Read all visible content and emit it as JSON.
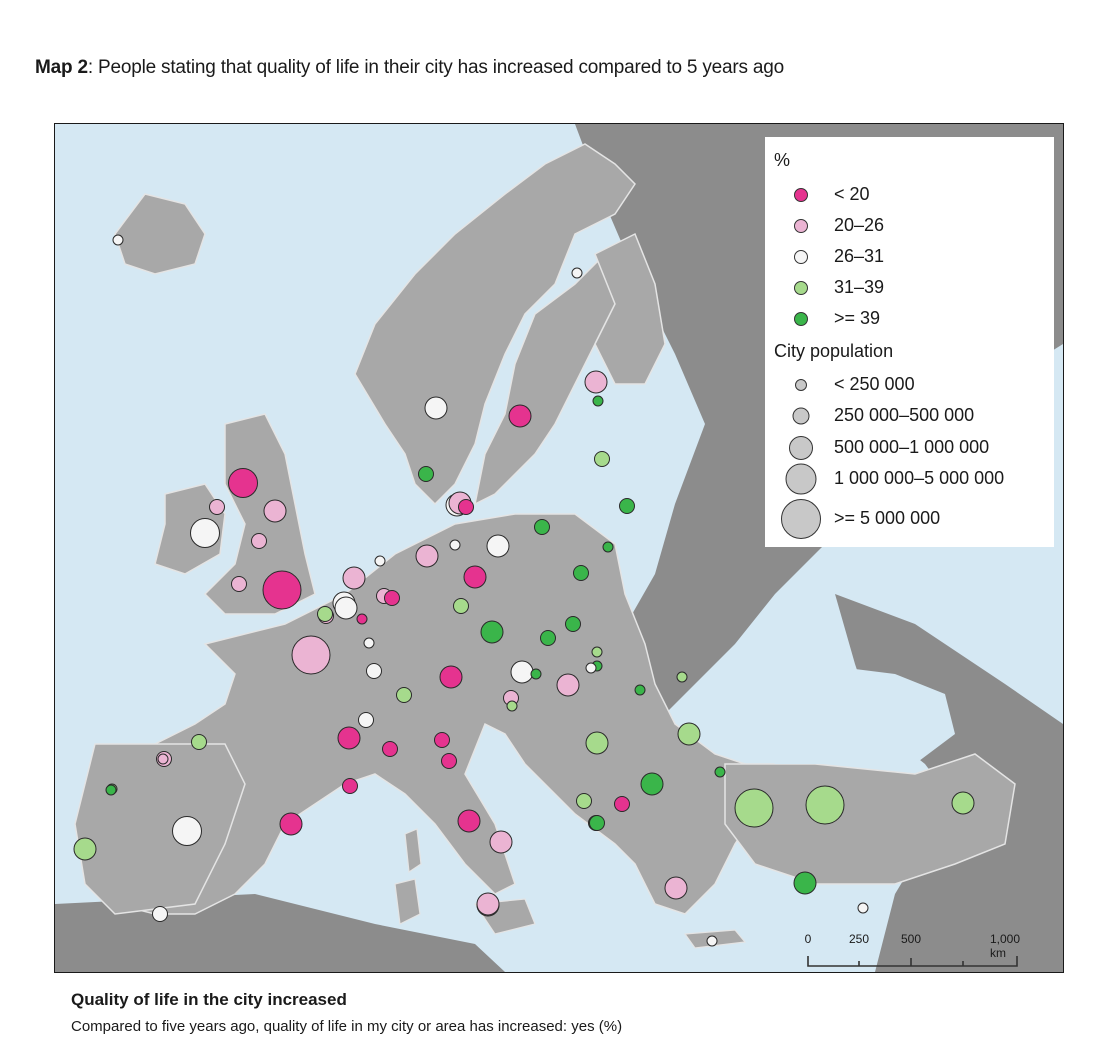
{
  "title": {
    "prefix": "Map 2",
    "text": ": People stating that quality of life in their city has increased compared to 5 years ago"
  },
  "colors": {
    "sea": "#d5e8f3",
    "land_focus": "#a8a8a8",
    "land_other": "#8c8c8c",
    "border": "#e4e4e4",
    "cat_lt20": "#e5338f",
    "cat_20_26": "#ebb4d3",
    "cat_26_31": "#f5f5f5",
    "cat_31_39": "#a6da8c",
    "cat_ge39": "#3ab54a"
  },
  "legend": {
    "pct_heading": "%",
    "categories": [
      {
        "label": "< 20",
        "color": "#e5338f"
      },
      {
        "label": "20–26",
        "color": "#ebb4d3"
      },
      {
        "label": "26–31",
        "color": "#f5f5f5"
      },
      {
        "label": "31–39",
        "color": "#a6da8c"
      },
      {
        "label": ">= 39",
        "color": "#3ab54a"
      }
    ],
    "pop_heading": "City population",
    "sizes": [
      {
        "label": "< 250 000"
      },
      {
        "label": "250 000–500 000"
      },
      {
        "label": "500 000–1 000 000"
      },
      {
        "label": "1 000 000–5 000 000"
      },
      {
        "label": ">= 5 000 000"
      }
    ]
  },
  "scale": {
    "ticks": [
      "0",
      "250",
      "500",
      "1,000 km"
    ]
  },
  "cities": [
    {
      "cat": 2,
      "size": 0
    },
    {
      "cat": 2,
      "size": 0
    },
    {
      "cat": 2,
      "size": 2
    },
    {
      "cat": 0,
      "size": 3
    },
    {
      "cat": 1,
      "size": 2
    },
    {
      "cat": 4,
      "size": 0
    },
    {
      "cat": 3,
      "size": 1
    },
    {
      "cat": 3,
      "size": 1
    },
    {
      "cat": 4,
      "size": 1
    },
    {
      "cat": 0,
      "size": 2
    },
    {
      "cat": 1,
      "size": 1
    },
    {
      "cat": 2,
      "size": 3
    },
    {
      "cat": 1,
      "size": 2
    },
    {
      "cat": 1,
      "size": 1
    },
    {
      "cat": 2,
      "size": 2
    },
    {
      "cat": 1,
      "size": 2
    },
    {
      "cat": 1,
      "size": 1
    },
    {
      "cat": 0,
      "size": 4
    },
    {
      "cat": 4,
      "size": 0
    },
    {
      "cat": 2,
      "size": 2
    },
    {
      "cat": 0,
      "size": 1
    },
    {
      "cat": 4,
      "size": 1
    },
    {
      "cat": 2,
      "size": 0
    },
    {
      "cat": 1,
      "size": 2
    },
    {
      "cat": 0,
      "size": 2
    },
    {
      "cat": 4,
      "size": 0
    },
    {
      "cat": 4,
      "size": 1
    },
    {
      "cat": 4,
      "size": 1
    },
    {
      "cat": 2,
      "size": 0
    },
    {
      "cat": 1,
      "size": 2
    },
    {
      "cat": 2,
      "size": 2
    },
    {
      "cat": 1,
      "size": 1
    },
    {
      "cat": 0,
      "size": 1
    },
    {
      "cat": 2,
      "size": 2
    },
    {
      "cat": 1,
      "size": 1
    },
    {
      "cat": 0,
      "size": 0
    },
    {
      "cat": 2,
      "size": 0
    },
    {
      "cat": 3,
      "size": 1
    },
    {
      "cat": 3,
      "size": 1
    },
    {
      "cat": 1,
      "size": 4
    },
    {
      "cat": 4,
      "size": 2
    },
    {
      "cat": 4,
      "size": 1
    },
    {
      "cat": 4,
      "size": 1
    },
    {
      "cat": 4,
      "size": 0
    },
    {
      "cat": 2,
      "size": 1
    },
    {
      "cat": 2,
      "size": 2
    },
    {
      "cat": 4,
      "size": 0
    },
    {
      "cat": 2,
      "size": 0
    },
    {
      "cat": 3,
      "size": 0
    },
    {
      "cat": 0,
      "size": 2
    },
    {
      "cat": 3,
      "size": 1
    },
    {
      "cat": 1,
      "size": 1
    },
    {
      "cat": 1,
      "size": 2
    },
    {
      "cat": 4,
      "size": 0
    },
    {
      "cat": 3,
      "size": 0
    },
    {
      "cat": 2,
      "size": 1
    },
    {
      "cat": 3,
      "size": 0
    },
    {
      "cat": 1,
      "size": 1
    },
    {
      "cat": 0,
      "size": 1
    },
    {
      "cat": 0,
      "size": 1
    },
    {
      "cat": 0,
      "size": 1
    },
    {
      "cat": 3,
      "size": 1
    },
    {
      "cat": 0,
      "size": 1
    },
    {
      "cat": 3,
      "size": 2
    },
    {
      "cat": 3,
      "size": 2
    },
    {
      "cat": 4,
      "size": 0
    },
    {
      "cat": 0,
      "size": 1
    },
    {
      "cat": 4,
      "size": 1
    },
    {
      "cat": 4,
      "size": 2
    },
    {
      "cat": 3,
      "size": 4
    },
    {
      "cat": 3,
      "size": 4
    },
    {
      "cat": 3,
      "size": 2
    },
    {
      "cat": 3,
      "size": 0
    },
    {
      "cat": 0,
      "size": 1
    },
    {
      "cat": 4,
      "size": 1
    },
    {
      "cat": 0,
      "size": 2
    },
    {
      "cat": 1,
      "size": 2
    },
    {
      "cat": 1,
      "size": 2
    },
    {
      "cat": 1,
      "size": 2
    },
    {
      "cat": 4,
      "size": 2
    },
    {
      "cat": 2,
      "size": 0
    },
    {
      "cat": 2,
      "size": 0
    },
    {
      "cat": 3,
      "size": 1
    },
    {
      "cat": 0,
      "size": 2
    },
    {
      "cat": 2,
      "size": 3
    },
    {
      "cat": 1,
      "size": 0
    },
    {
      "cat": 4,
      "size": 0
    },
    {
      "cat": 3,
      "size": 2
    },
    {
      "cat": 2,
      "size": 1
    },
    {
      "cat": 0,
      "size": 2
    },
    {
      "cat": 4,
      "size": 1
    },
    {
      "cat": 1,
      "size": 2
    }
  ],
  "caption": {
    "title": "Quality of life in the city increased",
    "subtitle": "Compared to five years ago, quality of life in my city or area has increased: yes (%)"
  }
}
